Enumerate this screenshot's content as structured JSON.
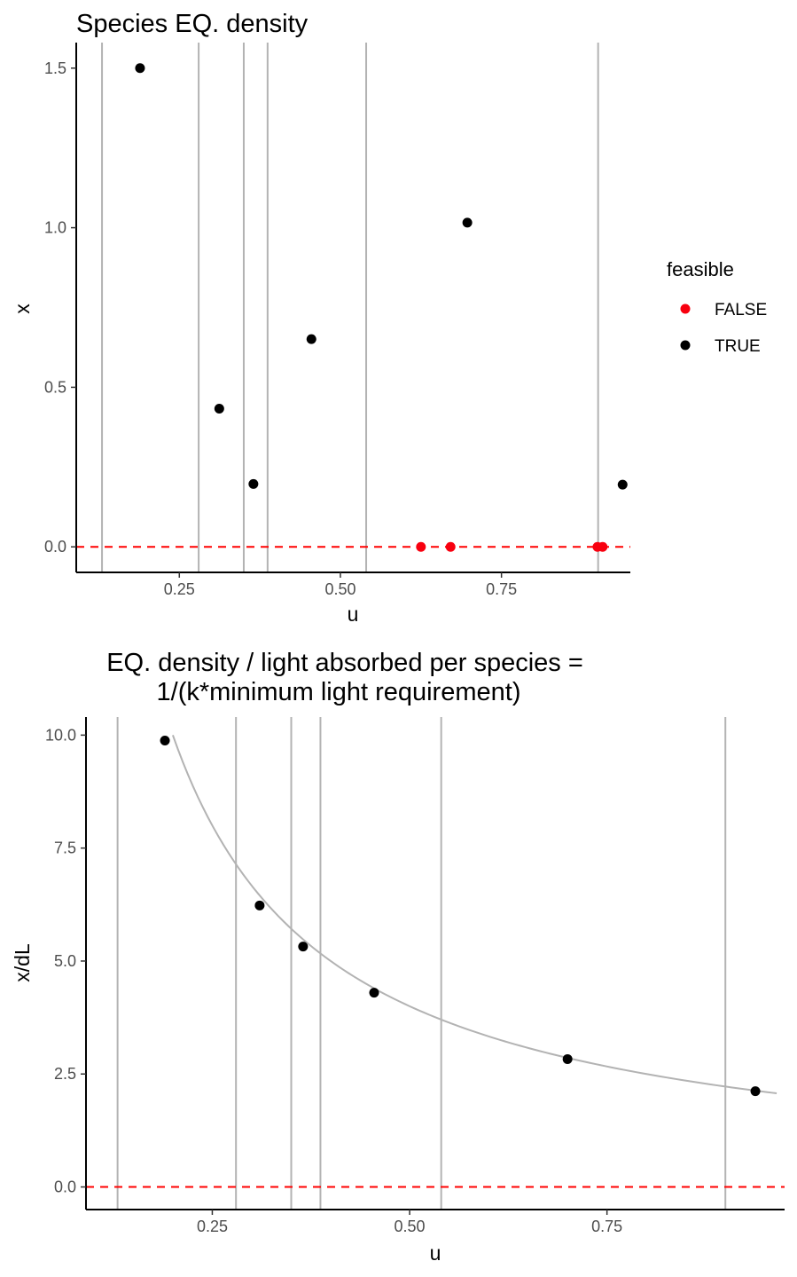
{
  "chart_data": [
    {
      "type": "scatter",
      "title": "Species EQ. density",
      "xlabel": "u",
      "ylabel": "x",
      "xlim": [
        0.09,
        0.95
      ],
      "ylim": [
        -0.08,
        1.58
      ],
      "xticks": [
        0.25,
        0.5,
        0.75
      ],
      "xtick_labels": [
        "0.25",
        "0.50",
        "0.75"
      ],
      "yticks": [
        0.0,
        0.5,
        1.0,
        1.5
      ],
      "ytick_labels": [
        "0.0",
        "0.5",
        "1.0",
        "1.5"
      ],
      "grid": false,
      "vlines": [
        0.13,
        0.28,
        0.35,
        0.387,
        0.54,
        0.9
      ],
      "vline_color": "#b3b3b3",
      "hline": {
        "y": 0,
        "style": "dashed",
        "color": "#ff0000"
      },
      "legend": {
        "title": "feasible",
        "position": "right",
        "entries": [
          {
            "label": "FALSE",
            "color": "#f8000f"
          },
          {
            "label": "TRUE",
            "color": "#000000"
          }
        ]
      },
      "series": [
        {
          "name": "FALSE",
          "color": "#f8000f",
          "x": [
            0.625,
            0.671,
            0.899,
            0.907
          ],
          "y": [
            0,
            0,
            0,
            0
          ]
        },
        {
          "name": "TRUE",
          "color": "#000000",
          "x": [
            0.189,
            0.312,
            0.365,
            0.455,
            0.697,
            0.938
          ],
          "y": [
            1.5,
            0.433,
            0.197,
            0.651,
            1.016,
            0.195
          ]
        }
      ]
    },
    {
      "type": "scatter",
      "title": "EQ. density / light absorbed per species =",
      "subtitle": "1/(k*minimum light requirement)",
      "xlabel": "u",
      "ylabel": "x/dL",
      "xlim": [
        0.09,
        0.975
      ],
      "ylim": [
        -0.5,
        10.4
      ],
      "xticks": [
        0.25,
        0.5,
        0.75
      ],
      "xtick_labels": [
        "0.25",
        "0.50",
        "0.75"
      ],
      "yticks": [
        0.0,
        2.5,
        5.0,
        7.5,
        10.0
      ],
      "ytick_labels": [
        "0.0",
        "2.5",
        "5.0",
        "7.5",
        "10.0"
      ],
      "grid": false,
      "vlines": [
        0.13,
        0.28,
        0.35,
        0.387,
        0.54,
        0.9
      ],
      "vline_color": "#b3b3b3",
      "hline": {
        "y": 0,
        "style": "dashed",
        "color": "#ff0000"
      },
      "curve": {
        "color": "#b3b3b3",
        "formula": "y = 2/x",
        "x_range": [
          0.2,
          0.965
        ]
      },
      "series": [
        {
          "color": "#000000",
          "x": [
            0.19,
            0.31,
            0.365,
            0.455,
            0.7,
            0.938
          ],
          "y": [
            9.88,
            6.23,
            5.32,
            4.3,
            2.83,
            2.12
          ]
        }
      ]
    }
  ]
}
